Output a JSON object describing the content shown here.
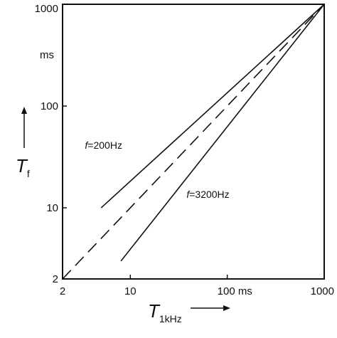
{
  "chart_data": {
    "type": "line",
    "x_scale": "log",
    "y_scale": "log",
    "xlim": [
      2,
      1000
    ],
    "ylim": [
      2,
      1000
    ],
    "x_ticks": [
      {
        "value": 2,
        "label": "2"
      },
      {
        "value": 10,
        "label": "10"
      },
      {
        "value": 100,
        "label": "100 ms"
      },
      {
        "value": 1000,
        "label": "1000"
      }
    ],
    "y_ticks": [
      {
        "value": 2,
        "label": "2"
      },
      {
        "value": 10,
        "label": "10"
      },
      {
        "value": 100,
        "label": "100"
      },
      {
        "value": 1000,
        "label": "1000"
      }
    ],
    "y_unit_label": "ms",
    "xlabel": {
      "main": "T",
      "sub": "1kHz"
    },
    "ylabel": {
      "main": "T",
      "sub": "f"
    },
    "grid": false,
    "series": [
      {
        "label": "f=200Hz",
        "style": "solid",
        "color": "#111111",
        "points": [
          {
            "x": 5,
            "y": 10
          },
          {
            "x": 1000,
            "y": 1000
          }
        ]
      },
      {
        "label": "",
        "style": "dashed",
        "color": "#111111",
        "points": [
          {
            "x": 2,
            "y": 2
          },
          {
            "x": 1000,
            "y": 1000
          }
        ]
      },
      {
        "label": "f=3200Hz",
        "style": "solid",
        "color": "#111111",
        "points": [
          {
            "x": 8,
            "y": 3
          },
          {
            "x": 1000,
            "y": 1000
          }
        ]
      }
    ],
    "annotations": [
      {
        "text": "f=200Hz",
        "x": 3.4,
        "y": 38
      },
      {
        "text": "f=3200Hz",
        "x": 38,
        "y": 12.5
      }
    ]
  }
}
